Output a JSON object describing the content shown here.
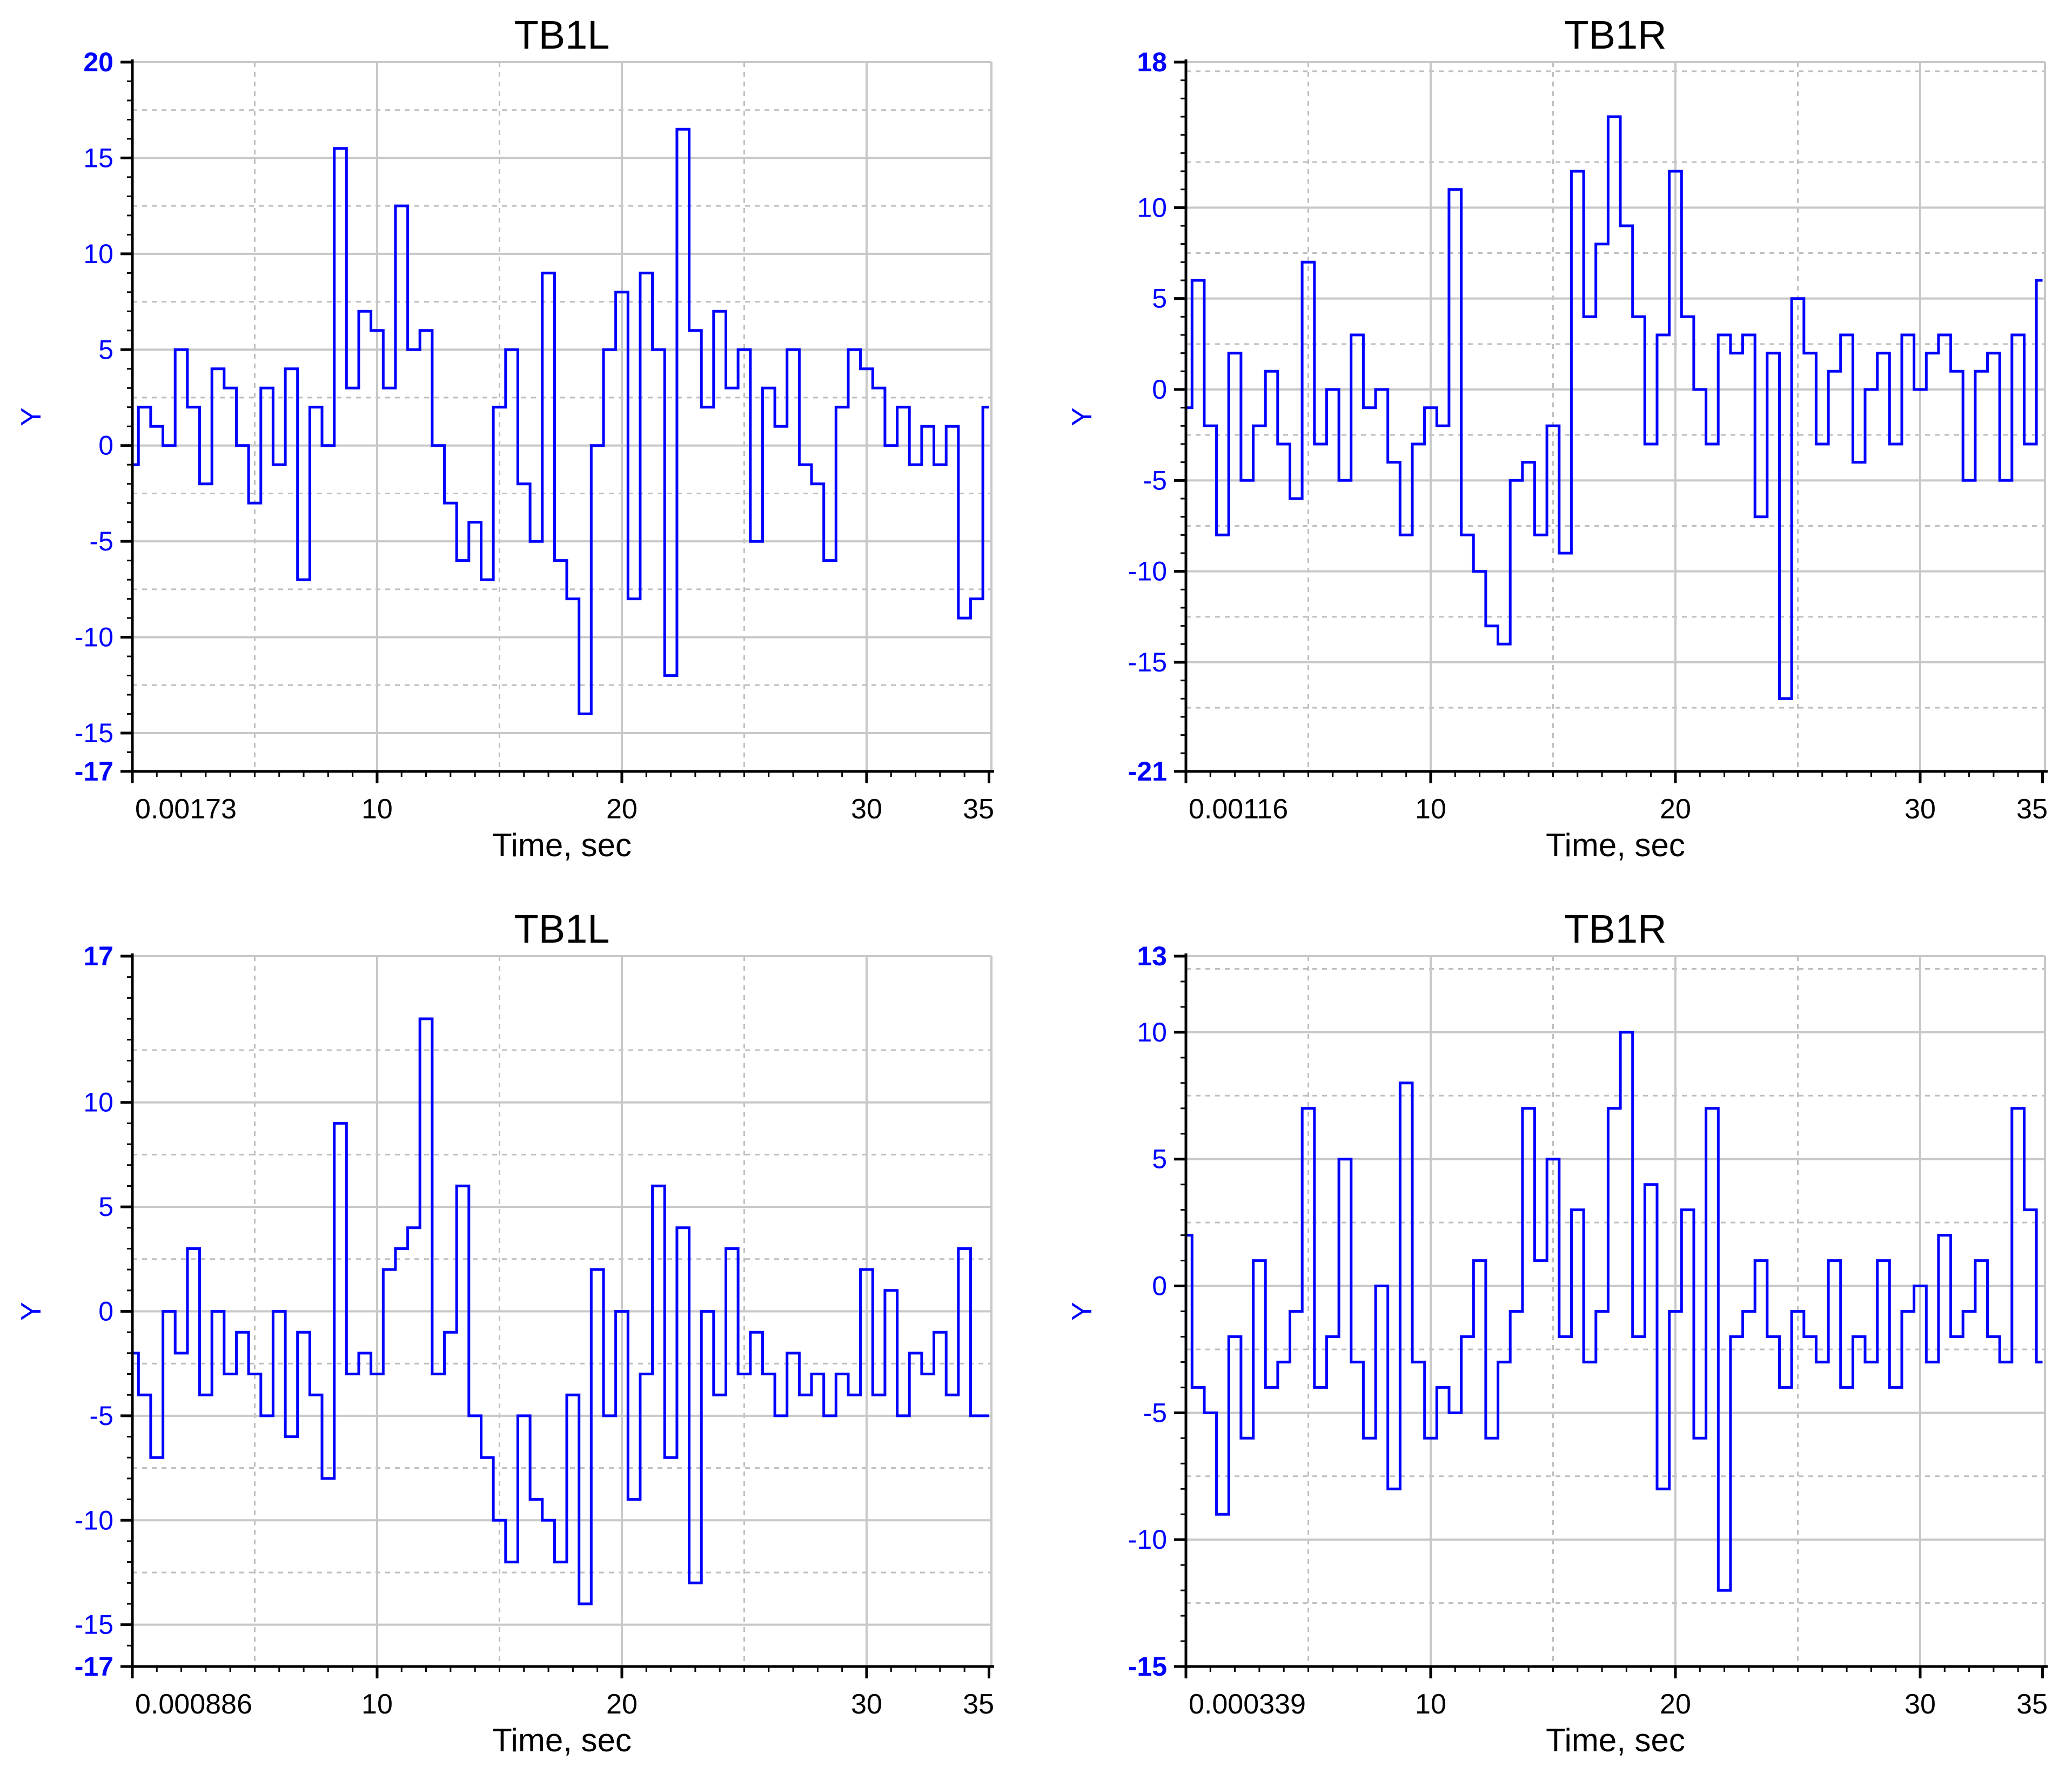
{
  "colors": {
    "series": "#0000ff",
    "grid_major": "#c8c8c8",
    "grid_minor": "#bfbfbf",
    "axis": "#000000"
  },
  "chart_data": [
    {
      "type": "line",
      "title": "TB1L",
      "xlabel": "Time, sec",
      "ylabel": "Y",
      "xlim": [
        0.00173,
        35.1
      ],
      "ylim": [
        -17,
        20
      ],
      "x_ticks": [
        "0.00173",
        "10",
        "20",
        "30",
        "35"
      ],
      "y_ticks": [
        "20",
        "15",
        "10",
        "5",
        "0",
        "-5",
        "-10",
        "-15",
        "-17"
      ],
      "grid": true,
      "series": [
        {
          "x": [
            0,
            0.5,
            1,
            1.5,
            2,
            2.5,
            3,
            3.5,
            4,
            4.5,
            5,
            5.5,
            6,
            6.5,
            7,
            7.5,
            8,
            8.5,
            9,
            9.5,
            10,
            10.5,
            11,
            11.5,
            12,
            12.5,
            13,
            13.5,
            14,
            14.5,
            15,
            15.5,
            16,
            16.5,
            17,
            17.5,
            18,
            18.5,
            19,
            19.5,
            20,
            20.5,
            21,
            21.5,
            22,
            22.5,
            23,
            23.5,
            24,
            24.5,
            25,
            25.5,
            26,
            26.5,
            27,
            27.5,
            28,
            28.5,
            29,
            29.5,
            30,
            30.5,
            31,
            31.5,
            32,
            32.5,
            33,
            33.5,
            34,
            34.5,
            35
          ],
          "y": [
            -1,
            2,
            1,
            0,
            5,
            2,
            -2,
            4,
            3,
            0,
            -3,
            3,
            -1,
            4,
            -7,
            2,
            0,
            15.5,
            3,
            7,
            6,
            3,
            12.5,
            5,
            6,
            0,
            -3,
            -6,
            -4,
            -7,
            2,
            5,
            -2,
            -5,
            9,
            -6,
            -8,
            -14,
            0,
            5,
            8,
            -8,
            9,
            5,
            -12,
            16.5,
            6,
            2,
            7,
            3,
            5,
            -5,
            3,
            1,
            5,
            -1,
            -2,
            -6,
            2,
            5,
            4,
            3,
            0,
            2,
            -1,
            1,
            -1,
            1,
            -9,
            -8,
            2
          ]
        }
      ]
    },
    {
      "type": "line",
      "title": "TB1R",
      "xlabel": "Time, sec",
      "ylabel": "Y",
      "xlim": [
        0.00116,
        35.1
      ],
      "ylim": [
        -21,
        18
      ],
      "x_ticks": [
        "0.00116",
        "10",
        "20",
        "30",
        "35"
      ],
      "y_ticks": [
        "18",
        "10",
        "5",
        "0",
        "-5",
        "-10",
        "-15",
        "-21"
      ],
      "grid": true,
      "series": [
        {
          "x": [
            0,
            0.5,
            1,
            1.5,
            2,
            2.5,
            3,
            3.5,
            4,
            4.5,
            5,
            5.5,
            6,
            6.5,
            7,
            7.5,
            8,
            8.5,
            9,
            9.5,
            10,
            10.5,
            11,
            11.5,
            12,
            12.5,
            13,
            13.5,
            14,
            14.5,
            15,
            15.5,
            16,
            16.5,
            17,
            17.5,
            18,
            18.5,
            19,
            19.5,
            20,
            20.5,
            21,
            21.5,
            22,
            22.5,
            23,
            23.5,
            24,
            24.5,
            25,
            25.5,
            26,
            26.5,
            27,
            27.5,
            28,
            28.5,
            29,
            29.5,
            30,
            30.5,
            31,
            31.5,
            32,
            32.5,
            33,
            33.5,
            34,
            34.5,
            35
          ],
          "y": [
            -1,
            6,
            -2,
            -8,
            2,
            -5,
            -2,
            1,
            -3,
            -6,
            7,
            -3,
            0,
            -5,
            3,
            -1,
            0,
            -4,
            -8,
            -3,
            -1,
            -2,
            11,
            -8,
            -10,
            -13,
            -14,
            -5,
            -4,
            -8,
            -2,
            -9,
            12,
            4,
            8,
            15,
            9,
            4,
            -3,
            3,
            12,
            4,
            0,
            -3,
            3,
            2,
            3,
            -7,
            2,
            -17,
            5,
            2,
            -3,
            1,
            3,
            -4,
            0,
            2,
            -3,
            3,
            0,
            2,
            3,
            1,
            -5,
            1,
            2,
            -5,
            3,
            -3,
            6
          ]
        }
      ]
    },
    {
      "type": "line",
      "title": "TB1L",
      "xlabel": "Time, sec",
      "ylabel": "Y",
      "xlim": [
        0.000886,
        35.1
      ],
      "ylim": [
        -17,
        17
      ],
      "x_ticks": [
        "0.000886",
        "10",
        "20",
        "30",
        "35"
      ],
      "y_ticks": [
        "17",
        "10",
        "5",
        "0",
        "-5",
        "-10",
        "-15",
        "-17"
      ],
      "grid": true,
      "series": [
        {
          "x": [
            0,
            0.5,
            1,
            1.5,
            2,
            2.5,
            3,
            3.5,
            4,
            4.5,
            5,
            5.5,
            6,
            6.5,
            7,
            7.5,
            8,
            8.5,
            9,
            9.5,
            10,
            10.5,
            11,
            11.5,
            12,
            12.5,
            13,
            13.5,
            14,
            14.5,
            15,
            15.5,
            16,
            16.5,
            17,
            17.5,
            18,
            18.5,
            19,
            19.5,
            20,
            20.5,
            21,
            21.5,
            22,
            22.5,
            23,
            23.5,
            24,
            24.5,
            25,
            25.5,
            26,
            26.5,
            27,
            27.5,
            28,
            28.5,
            29,
            29.5,
            30,
            30.5,
            31,
            31.5,
            32,
            32.5,
            33,
            33.5,
            34,
            34.5,
            35
          ],
          "y": [
            -2,
            -4,
            -7,
            0,
            -2,
            3,
            -4,
            0,
            -3,
            -1,
            -3,
            -5,
            0,
            -6,
            -1,
            -4,
            -8,
            9,
            -3,
            -2,
            -3,
            2,
            3,
            4,
            14,
            -3,
            -1,
            6,
            -5,
            -7,
            -10,
            -12,
            -5,
            -9,
            -10,
            -12,
            -4,
            -14,
            2,
            -5,
            0,
            -9,
            -3,
            6,
            -7,
            4,
            -13,
            0,
            -4,
            3,
            -3,
            -1,
            -3,
            -5,
            -2,
            -4,
            -3,
            -5,
            -3,
            -4,
            2,
            -4,
            1,
            -5,
            -2,
            -3,
            -1,
            -4,
            3,
            -5,
            -5
          ]
        }
      ]
    },
    {
      "type": "line",
      "title": "TB1R",
      "xlabel": "Time, sec",
      "ylabel": "Y",
      "xlim": [
        0.000339,
        35.1
      ],
      "ylim": [
        -15,
        13
      ],
      "x_ticks": [
        "0.000339",
        "10",
        "20",
        "30",
        "35"
      ],
      "y_ticks": [
        "13",
        "10",
        "5",
        "0",
        "-5",
        "-10",
        "-15"
      ],
      "grid": true,
      "series": [
        {
          "x": [
            0,
            0.5,
            1,
            1.5,
            2,
            2.5,
            3,
            3.5,
            4,
            4.5,
            5,
            5.5,
            6,
            6.5,
            7,
            7.5,
            8,
            8.5,
            9,
            9.5,
            10,
            10.5,
            11,
            11.5,
            12,
            12.5,
            13,
            13.5,
            14,
            14.5,
            15,
            15.5,
            16,
            16.5,
            17,
            17.5,
            18,
            18.5,
            19,
            19.5,
            20,
            20.5,
            21,
            21.5,
            22,
            22.5,
            23,
            23.5,
            24,
            24.5,
            25,
            25.5,
            26,
            26.5,
            27,
            27.5,
            28,
            28.5,
            29,
            29.5,
            30,
            30.5,
            31,
            31.5,
            32,
            32.5,
            33,
            33.5,
            34,
            34.5,
            35
          ],
          "y": [
            2,
            -4,
            -5,
            -9,
            -2,
            -6,
            1,
            -4,
            -3,
            -1,
            7,
            -4,
            -2,
            5,
            -3,
            -6,
            0,
            -8,
            8,
            -3,
            -6,
            -4,
            -5,
            -2,
            1,
            -6,
            -3,
            -1,
            7,
            1,
            5,
            -2,
            3,
            -3,
            -1,
            7,
            10,
            -2,
            4,
            -8,
            -1,
            3,
            -6,
            7,
            -12,
            -2,
            -1,
            1,
            -2,
            -4,
            -1,
            -2,
            -3,
            1,
            -4,
            -2,
            -3,
            1,
            -4,
            -1,
            0,
            -3,
            2,
            -2,
            -1,
            1,
            -2,
            -3,
            7,
            3,
            -3
          ]
        }
      ]
    }
  ]
}
